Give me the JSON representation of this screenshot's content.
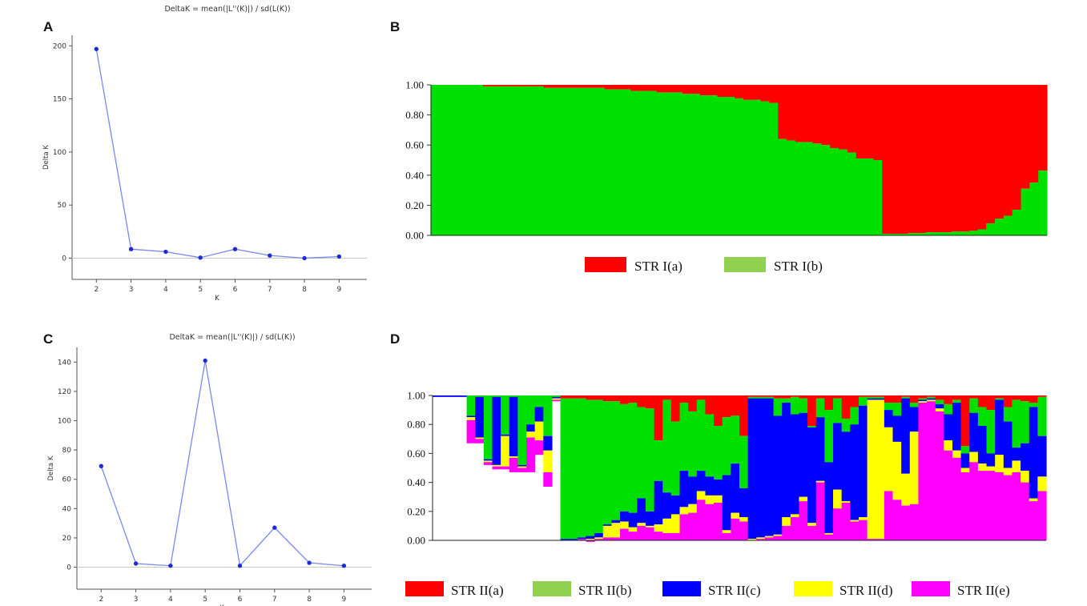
{
  "colors": {
    "line": "#7b88f2",
    "point": "#1f2bd6",
    "panel_letter": "#111111"
  },
  "panels": {
    "a": "A",
    "b": "B",
    "c": "C",
    "d": "D"
  },
  "chart_data": [
    {
      "id": "A",
      "type": "line",
      "title": "DeltaK = mean(|L''(K)|) / sd(L(K))",
      "xlabel": "K",
      "ylabel": "Delta K",
      "x": [
        2,
        3,
        4,
        5,
        6,
        7,
        8,
        9
      ],
      "series": [
        {
          "values": [
            197,
            8.5,
            6,
            0.5,
            8.5,
            2.5,
            0,
            1.5
          ]
        }
      ],
      "xlim": [
        1.3,
        9.8
      ],
      "ylim": [
        -20,
        210
      ],
      "xticks": [
        "2",
        "3",
        "4",
        "5",
        "6",
        "7",
        "8",
        "9"
      ],
      "yticks": [
        "0",
        "50",
        "100",
        "150",
        "200"
      ],
      "zero_line": true,
      "grid": false
    },
    {
      "id": "C",
      "type": "line",
      "title": "DeltaK = mean(|L''(K)|) / sd(L(K))",
      "xlabel": "K",
      "ylabel": "Delta K",
      "x": [
        2,
        3,
        4,
        5,
        6,
        7,
        8,
        9
      ],
      "series": [
        {
          "values": [
            69,
            2.5,
            1,
            141,
            1,
            27,
            3,
            1
          ]
        }
      ],
      "xlim": [
        1.3,
        9.8
      ],
      "ylim": [
        -15,
        150
      ],
      "xticks": [
        "2",
        "3",
        "4",
        "5",
        "6",
        "7",
        "8",
        "9"
      ],
      "yticks": [
        "0",
        "20",
        "40",
        "60",
        "80",
        "100",
        "120",
        "140"
      ],
      "zero_line": true,
      "grid": false
    },
    {
      "id": "B",
      "type": "bar",
      "stacked": true,
      "ylim": [
        0,
        1
      ],
      "yticks": [
        "0.00",
        "0.20",
        "0.40",
        "0.60",
        "0.80",
        "1.00"
      ],
      "legend_position": "bottom",
      "series": [
        {
          "name": "STR I(a)",
          "color": "#ff0000",
          "legend_color": "#ff0000",
          "values": [
            0,
            0,
            0,
            0,
            0,
            0,
            0.01,
            0.01,
            0.01,
            0.01,
            0.01,
            0.01,
            0.01,
            0.02,
            0.02,
            0.02,
            0.02,
            0.02,
            0.02,
            0.02,
            0.03,
            0.03,
            0.03,
            0.04,
            0.04,
            0.04,
            0.05,
            0.05,
            0.05,
            0.06,
            0.06,
            0.07,
            0.07,
            0.08,
            0.08,
            0.09,
            0.1,
            0.1,
            0.11,
            0.12,
            0.36,
            0.37,
            0.38,
            0.38,
            0.39,
            0.4,
            0.42,
            0.43,
            0.45,
            0.49,
            0.49,
            0.5,
            0.99,
            0.99,
            0.99,
            0.985,
            0.985,
            0.98,
            0.98,
            0.98,
            0.975,
            0.975,
            0.97,
            0.96,
            0.92,
            0.89,
            0.87,
            0.83,
            0.69,
            0.65,
            0.57
          ]
        },
        {
          "name": "STR I(b)",
          "color": "#00e000",
          "legend_color": "#92d050"
        }
      ]
    },
    {
      "id": "D",
      "type": "bar",
      "stacked": true,
      "ylim": [
        0,
        1
      ],
      "yticks": [
        "0.00",
        "0.20",
        "0.40",
        "0.60",
        "0.80",
        "1.00"
      ],
      "legend_position": "bottom",
      "series_names": [
        "STR II(a)",
        "STR II(b)",
        "STR II(c)",
        "STR II(d)",
        "STR II(e)"
      ],
      "series_colors": [
        "#ff0000",
        "#00e000",
        "#0000ff",
        "#ffff00",
        "#ff00ff"
      ],
      "legend_colors": [
        "#ff0000",
        "#92d050",
        "#0000ff",
        "#ffff00",
        "#ff00ff"
      ],
      "bars": [
        [
          0,
          0,
          0.01,
          0,
          0
        ],
        [
          0,
          0,
          0.01,
          0,
          0
        ],
        [
          0,
          0,
          0.01,
          0,
          0
        ],
        [
          0,
          0,
          0.01,
          0,
          0
        ],
        [
          0,
          0.14,
          0.01,
          0.02,
          0.16
        ],
        [
          0,
          0.01,
          0.28,
          0.01,
          0.03
        ],
        [
          0,
          0.44,
          0.01,
          0.01,
          0.02
        ],
        [
          0,
          0.01,
          0.47,
          0.01,
          0.02
        ],
        [
          0,
          0.27,
          0.01,
          0.21,
          0.02
        ],
        [
          0,
          0.01,
          0.41,
          0.01,
          0.1
        ],
        [
          0,
          0.48,
          0.01,
          0.01,
          0.03
        ],
        [
          0,
          0.2,
          0.05,
          0.04,
          0.24
        ],
        [
          0,
          0.08,
          0.1,
          0.13,
          0.1
        ],
        [
          0,
          0.28,
          0.1,
          0.15,
          0.1
        ],
        [
          0,
          0.01,
          0.01,
          0.01,
          0.01
        ],
        [
          0.02,
          0.97,
          0.01,
          0,
          0
        ],
        [
          0.02,
          0.97,
          0.01,
          0,
          0
        ],
        [
          0.02,
          0.96,
          0.01,
          0,
          0.01
        ],
        [
          0.03,
          0.94,
          0.02,
          0.01,
          0.01
        ],
        [
          0.03,
          0.92,
          0.03,
          0.01,
          0.01
        ],
        [
          0.04,
          0.85,
          0.01,
          0.08,
          0.02
        ],
        [
          0.04,
          0.82,
          0.02,
          0.1,
          0.02
        ],
        [
          0.06,
          0.74,
          0.07,
          0.05,
          0.08
        ],
        [
          0.05,
          0.76,
          0.1,
          0.03,
          0.06
        ],
        [
          0.08,
          0.63,
          0.17,
          0.02,
          0.1
        ],
        [
          0.09,
          0.71,
          0.1,
          0.01,
          0.09
        ],
        [
          0.31,
          0.28,
          0.3,
          0.05,
          0.06
        ],
        [
          0.03,
          0.64,
          0.18,
          0.1,
          0.05
        ],
        [
          0.18,
          0.51,
          0.13,
          0.13,
          0.05
        ],
        [
          0.05,
          0.47,
          0.25,
          0.05,
          0.18
        ],
        [
          0.11,
          0.45,
          0.19,
          0.06,
          0.19
        ],
        [
          0.03,
          0.49,
          0.14,
          0.06,
          0.28
        ],
        [
          0.13,
          0.43,
          0.13,
          0.06,
          0.25
        ],
        [
          0.21,
          0.37,
          0.11,
          0.05,
          0.26
        ],
        [
          0.15,
          0.4,
          0.38,
          0.02,
          0.05
        ],
        [
          0.14,
          0.33,
          0.34,
          0.04,
          0.15
        ],
        [
          0.28,
          0.36,
          0.2,
          0.03,
          0.13
        ],
        [
          0.01,
          0.01,
          0.97,
          0.01,
          0
        ],
        [
          0.01,
          0.01,
          0.96,
          0.01,
          0.01
        ],
        [
          0.01,
          0.01,
          0.95,
          0.01,
          0.02
        ],
        [
          0.02,
          0.12,
          0.82,
          0.01,
          0.03
        ],
        [
          0.02,
          0.03,
          0.79,
          0.06,
          0.1
        ],
        [
          0.01,
          0.12,
          0.69,
          0.02,
          0.16
        ],
        [
          0.02,
          0.1,
          0.58,
          0.03,
          0.27
        ],
        [
          0.21,
          0.01,
          0.66,
          0.02,
          0.1
        ],
        [
          0.02,
          0.13,
          0.44,
          0.01,
          0.4
        ],
        [
          0.1,
          0.36,
          0.49,
          0.01,
          0.04
        ],
        [
          0.02,
          0.17,
          0.46,
          0.13,
          0.22
        ],
        [
          0.16,
          0.09,
          0.48,
          0.01,
          0.26
        ],
        [
          0.08,
          0.12,
          0.66,
          0.01,
          0.13
        ],
        [
          0.01,
          0.06,
          0.77,
          0.02,
          0.14
        ],
        [
          0.01,
          0.01,
          0.01,
          0.96,
          0.01
        ],
        [
          0.01,
          0.01,
          0.01,
          0.96,
          0.01
        ],
        [
          0.05,
          0.05,
          0.12,
          0.44,
          0.34
        ],
        [
          0.05,
          0.09,
          0.18,
          0.4,
          0.28
        ],
        [
          0.01,
          0.01,
          0.52,
          0.22,
          0.24
        ],
        [
          0.05,
          0.03,
          0.17,
          0.5,
          0.25
        ],
        [
          0.02,
          0.01,
          0.01,
          0.01,
          0.95
        ],
        [
          0.01,
          0.01,
          0.01,
          0.01,
          0.96
        ],
        [
          0.03,
          0.03,
          0.03,
          0.02,
          0.89
        ],
        [
          0.06,
          0.07,
          0.18,
          0.07,
          0.62
        ],
        [
          0.03,
          0.02,
          0.33,
          0.05,
          0.57
        ],
        [
          0.35,
          0.05,
          0.1,
          0.03,
          0.47
        ],
        [
          0.02,
          0.1,
          0.27,
          0.07,
          0.54
        ],
        [
          0.08,
          0.13,
          0.26,
          0.05,
          0.48
        ],
        [
          0.1,
          0.3,
          0.09,
          0.03,
          0.48
        ],
        [
          0.02,
          0.01,
          0.38,
          0.12,
          0.47
        ],
        [
          0.08,
          0.1,
          0.32,
          0.05,
          0.45
        ],
        [
          0.03,
          0.33,
          0.09,
          0.08,
          0.47
        ],
        [
          0.04,
          0.29,
          0.19,
          0.08,
          0.4
        ],
        [
          0.05,
          0.03,
          0.63,
          0.02,
          0.27
        ],
        [
          0.01,
          0.27,
          0.28,
          0.1,
          0.34
        ]
      ]
    }
  ]
}
